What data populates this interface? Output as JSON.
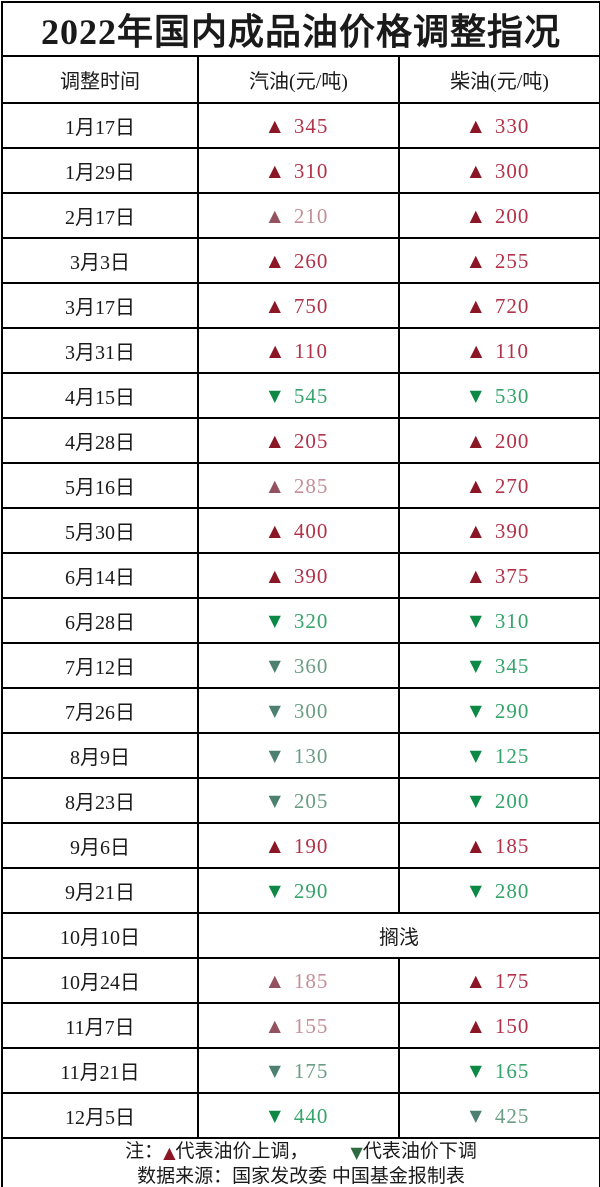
{
  "title": "2022年国内成品油价格调整指况",
  "icons": {
    "up": "▲",
    "down": "▼"
  },
  "colors": {
    "up_arrow": "#8a1626",
    "up_text": "#b23249",
    "up_arrow_muted": "#92525f",
    "up_text_muted": "#c38f99",
    "down_arrow": "#0c8a45",
    "down_text": "#34a46a",
    "down_arrow_muted": "#4d8070",
    "down_text_muted": "#6b9c85",
    "note_up": "#8a1626",
    "note_down": "#2f6b40"
  },
  "table": {
    "headers": [
      "调整时间",
      "汽油(元/吨)",
      "柴油(元/吨)"
    ],
    "rows": [
      {
        "date": "1月17日",
        "gasoline": {
          "dir": "up",
          "value": "345",
          "tone": "normal"
        },
        "diesel": {
          "dir": "up",
          "value": "330",
          "tone": "normal"
        }
      },
      {
        "date": "1月29日",
        "gasoline": {
          "dir": "up",
          "value": "310",
          "tone": "normal"
        },
        "diesel": {
          "dir": "up",
          "value": "300",
          "tone": "normal"
        }
      },
      {
        "date": "2月17日",
        "gasoline": {
          "dir": "up",
          "value": "210",
          "tone": "muted"
        },
        "diesel": {
          "dir": "up",
          "value": "200",
          "tone": "normal"
        }
      },
      {
        "date": "3月3日",
        "gasoline": {
          "dir": "up",
          "value": "260",
          "tone": "normal"
        },
        "diesel": {
          "dir": "up",
          "value": "255",
          "tone": "normal"
        }
      },
      {
        "date": "3月17日",
        "gasoline": {
          "dir": "up",
          "value": "750",
          "tone": "normal"
        },
        "diesel": {
          "dir": "up",
          "value": "720",
          "tone": "normal"
        }
      },
      {
        "date": "3月31日",
        "gasoline": {
          "dir": "up",
          "value": "110",
          "tone": "normal"
        },
        "diesel": {
          "dir": "up",
          "value": "110",
          "tone": "normal"
        }
      },
      {
        "date": "4月15日",
        "gasoline": {
          "dir": "down",
          "value": "545",
          "tone": "normal"
        },
        "diesel": {
          "dir": "down",
          "value": "530",
          "tone": "normal"
        }
      },
      {
        "date": "4月28日",
        "gasoline": {
          "dir": "up",
          "value": "205",
          "tone": "normal"
        },
        "diesel": {
          "dir": "up",
          "value": "200",
          "tone": "normal"
        }
      },
      {
        "date": "5月16日",
        "gasoline": {
          "dir": "up",
          "value": "285",
          "tone": "muted"
        },
        "diesel": {
          "dir": "up",
          "value": "270",
          "tone": "normal"
        }
      },
      {
        "date": "5月30日",
        "gasoline": {
          "dir": "up",
          "value": "400",
          "tone": "normal"
        },
        "diesel": {
          "dir": "up",
          "value": "390",
          "tone": "normal"
        }
      },
      {
        "date": "6月14日",
        "gasoline": {
          "dir": "up",
          "value": "390",
          "tone": "normal"
        },
        "diesel": {
          "dir": "up",
          "value": "375",
          "tone": "normal"
        }
      },
      {
        "date": "6月28日",
        "gasoline": {
          "dir": "down",
          "value": "320",
          "tone": "normal"
        },
        "diesel": {
          "dir": "down",
          "value": "310",
          "tone": "normal"
        }
      },
      {
        "date": "7月12日",
        "gasoline": {
          "dir": "down",
          "value": "360",
          "tone": "muted"
        },
        "diesel": {
          "dir": "down",
          "value": "345",
          "tone": "normal"
        }
      },
      {
        "date": "7月26日",
        "gasoline": {
          "dir": "down",
          "value": "300",
          "tone": "muted"
        },
        "diesel": {
          "dir": "down",
          "value": "290",
          "tone": "normal"
        }
      },
      {
        "date": "8月9日",
        "gasoline": {
          "dir": "down",
          "value": "130",
          "tone": "muted"
        },
        "diesel": {
          "dir": "down",
          "value": "125",
          "tone": "normal"
        }
      },
      {
        "date": "8月23日",
        "gasoline": {
          "dir": "down",
          "value": "205",
          "tone": "muted"
        },
        "diesel": {
          "dir": "down",
          "value": "200",
          "tone": "normal"
        }
      },
      {
        "date": "9月6日",
        "gasoline": {
          "dir": "up",
          "value": "190",
          "tone": "normal"
        },
        "diesel": {
          "dir": "up",
          "value": "185",
          "tone": "normal"
        }
      },
      {
        "date": "9月21日",
        "gasoline": {
          "dir": "down",
          "value": "290",
          "tone": "normal"
        },
        "diesel": {
          "dir": "down",
          "value": "280",
          "tone": "normal"
        }
      },
      {
        "date": "10月10日",
        "merged": "搁浅"
      },
      {
        "date": "10月24日",
        "gasoline": {
          "dir": "up",
          "value": "185",
          "tone": "muted"
        },
        "diesel": {
          "dir": "up",
          "value": "175",
          "tone": "normal"
        }
      },
      {
        "date": "11月7日",
        "gasoline": {
          "dir": "up",
          "value": "155",
          "tone": "muted"
        },
        "diesel": {
          "dir": "up",
          "value": "150",
          "tone": "normal"
        }
      },
      {
        "date": "11月21日",
        "gasoline": {
          "dir": "down",
          "value": "175",
          "tone": "muted"
        },
        "diesel": {
          "dir": "down",
          "value": "165",
          "tone": "normal"
        }
      },
      {
        "date": "12月5日",
        "gasoline": {
          "dir": "down",
          "value": "440",
          "tone": "normal"
        },
        "diesel": {
          "dir": "down",
          "value": "425",
          "tone": "muted"
        }
      }
    ]
  },
  "footer": {
    "note_prefix": "注：",
    "up_label": "代表油价上调，",
    "down_label": "代表油价下调",
    "source": "数据来源：国家发改委  中国基金报制表"
  },
  "chart_data": {
    "type": "table",
    "title": "2022年国内成品油价格调整指况",
    "columns": [
      "调整时间",
      "汽油(元/吨)",
      "柴油(元/吨)"
    ],
    "rows": [
      [
        "1月17日",
        "+345",
        "+330"
      ],
      [
        "1月29日",
        "+310",
        "+300"
      ],
      [
        "2月17日",
        "+210",
        "+200"
      ],
      [
        "3月3日",
        "+260",
        "+255"
      ],
      [
        "3月17日",
        "+750",
        "+720"
      ],
      [
        "3月31日",
        "+110",
        "+110"
      ],
      [
        "4月15日",
        "-545",
        "-530"
      ],
      [
        "4月28日",
        "+205",
        "+200"
      ],
      [
        "5月16日",
        "+285",
        "+270"
      ],
      [
        "5月30日",
        "+400",
        "+390"
      ],
      [
        "6月14日",
        "+390",
        "+375"
      ],
      [
        "6月28日",
        "-320",
        "-310"
      ],
      [
        "7月12日",
        "-360",
        "-345"
      ],
      [
        "7月26日",
        "-300",
        "-290"
      ],
      [
        "8月9日",
        "-130",
        "-125"
      ],
      [
        "8月23日",
        "-205",
        "-200"
      ],
      [
        "9月6日",
        "+190",
        "+185"
      ],
      [
        "9月21日",
        "-290",
        "-280"
      ],
      [
        "10月10日",
        "搁浅",
        "搁浅"
      ],
      [
        "10月24日",
        "+185",
        "+175"
      ],
      [
        "11月7日",
        "+155",
        "+150"
      ],
      [
        "11月21日",
        "-175",
        "-165"
      ],
      [
        "12月5日",
        "-440",
        "-425"
      ]
    ],
    "legend": "▲代表油价上调，▼代表油价下调",
    "source": "数据来源：国家发改委 中国基金报制表"
  }
}
